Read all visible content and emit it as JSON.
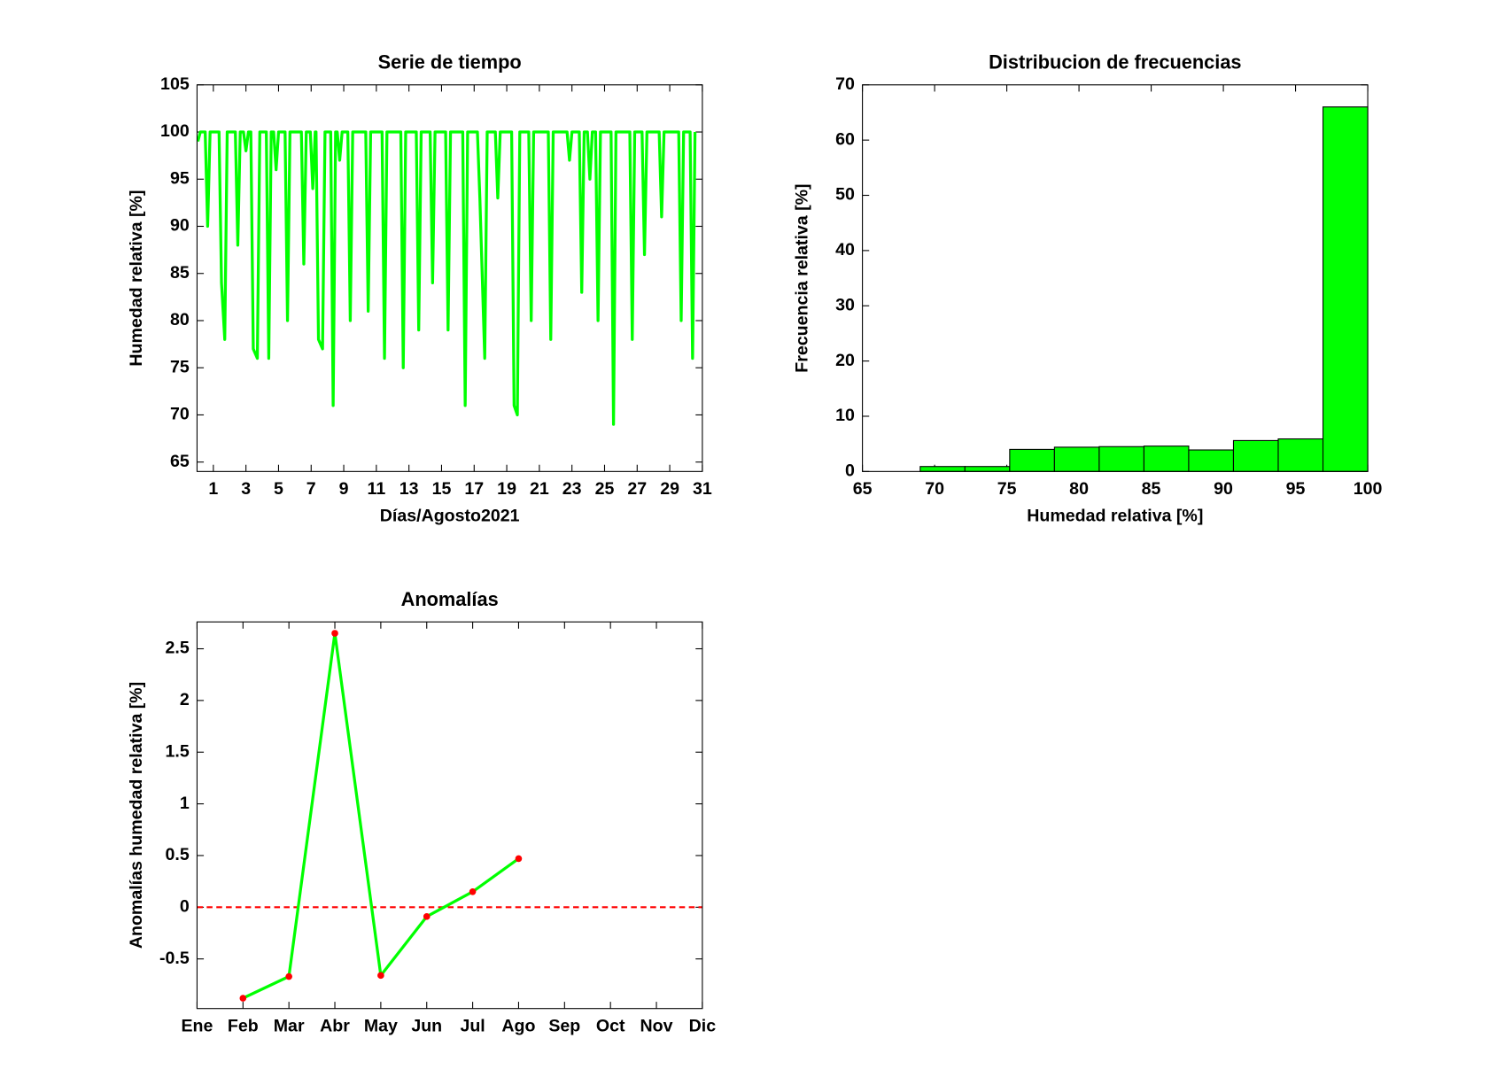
{
  "chart_data": [
    {
      "type": "line",
      "title": "Serie de tiempo",
      "xlabel": "Días/Agosto2021",
      "ylabel": "Humedad relativa [%]",
      "x": [
        0.05,
        0.2,
        0.5,
        0.65,
        0.8,
        1.35,
        1.5,
        1.7,
        1.85,
        2.35,
        2.5,
        2.65,
        2.85,
        3.0,
        3.15,
        3.3,
        3.45,
        3.7,
        3.85,
        4.25,
        4.4,
        4.55,
        4.7,
        4.85,
        5.0,
        5.4,
        5.55,
        5.7,
        6.4,
        6.55,
        6.7,
        6.95,
        7.1,
        7.25,
        7.3,
        7.45,
        7.7,
        7.85,
        8.2,
        8.35,
        8.5,
        8.6,
        8.75,
        8.9,
        9.25,
        9.4,
        9.55,
        10.35,
        10.5,
        10.65,
        11.35,
        11.5,
        11.65,
        12.5,
        12.65,
        12.8,
        13.45,
        13.6,
        13.75,
        14.3,
        14.45,
        14.6,
        15.25,
        15.4,
        15.55,
        16.3,
        16.45,
        16.6,
        17.2,
        17.35,
        17.65,
        17.8,
        18.3,
        18.45,
        18.6,
        19.3,
        19.45,
        19.65,
        19.8,
        20.35,
        20.5,
        20.65,
        21.55,
        21.7,
        21.85,
        22.7,
        22.85,
        23.0,
        23.45,
        23.6,
        23.75,
        23.95,
        24.1,
        24.25,
        24.45,
        24.6,
        24.75,
        25.4,
        25.55,
        25.7,
        26.55,
        26.7,
        26.85,
        27.3,
        27.45,
        27.6,
        28.35,
        28.5,
        28.65,
        29.55,
        29.7,
        29.85,
        30.25,
        30.4,
        30.55
      ],
      "series": [
        {
          "color": "#00ff00",
          "values": [
            99,
            100,
            100,
            90,
            100,
            100,
            84,
            78,
            100,
            100,
            88,
            100,
            100,
            98,
            100,
            100,
            77,
            76,
            100,
            100,
            76,
            100,
            100,
            96,
            100,
            100,
            80,
            100,
            100,
            86,
            100,
            100,
            94,
            100,
            100,
            78,
            77,
            100,
            100,
            71,
            100,
            100,
            97,
            100,
            100,
            80,
            100,
            100,
            81,
            100,
            100,
            76,
            100,
            100,
            75,
            100,
            100,
            79,
            100,
            100,
            84,
            100,
            100,
            79,
            100,
            100,
            71,
            100,
            100,
            93,
            76,
            100,
            100,
            93,
            100,
            100,
            71,
            70,
            100,
            100,
            80,
            100,
            100,
            78,
            100,
            100,
            97,
            100,
            100,
            83,
            100,
            100,
            95,
            100,
            100,
            80,
            100,
            100,
            69,
            100,
            100,
            78,
            100,
            100,
            87,
            100,
            100,
            91,
            100,
            100,
            80,
            100,
            100,
            76,
            100
          ]
        }
      ],
      "xlim": [
        0,
        31
      ],
      "xticks": [
        1,
        3,
        5,
        7,
        9,
        11,
        13,
        15,
        17,
        19,
        21,
        23,
        25,
        27,
        29,
        31
      ],
      "ylim": [
        64,
        105
      ],
      "yticks": [
        65,
        70,
        75,
        80,
        85,
        90,
        95,
        100,
        105
      ]
    },
    {
      "type": "histogram",
      "title": "Distribucion de frecuencias",
      "xlabel": "Humedad relativa [%]",
      "ylabel": "Frecuencia relativa [%]",
      "bins": [
        69,
        72.1,
        75.2,
        78.3,
        81.4,
        84.5,
        87.6,
        90.7,
        93.8,
        96.9,
        100
      ],
      "values": [
        0.9,
        0.9,
        4.0,
        4.4,
        4.5,
        4.6,
        3.9,
        5.6,
        5.9,
        66.0
      ],
      "color": "#00ff00",
      "xlim": [
        65,
        100
      ],
      "xticks": [
        65,
        70,
        75,
        80,
        85,
        90,
        95,
        100
      ],
      "ylim": [
        0,
        70
      ],
      "yticks": [
        0,
        10,
        20,
        30,
        40,
        50,
        60,
        70
      ]
    },
    {
      "type": "line",
      "title": "Anomalías",
      "ylabel": "Anomalías humedad relativa [%]",
      "categories": [
        "Ene",
        "Feb",
        "Mar",
        "Abr",
        "May",
        "Jun",
        "Jul",
        "Ago",
        "Sep",
        "Oct",
        "Nov",
        "Dic"
      ],
      "series": [
        {
          "color": "#00ff00",
          "marker_color": "#ff0000",
          "values": [
            null,
            -0.88,
            -0.67,
            2.65,
            -0.66,
            -0.09,
            0.15,
            0.47,
            null,
            null,
            null,
            null
          ]
        }
      ],
      "hline": {
        "value": 0,
        "color": "#ff0000"
      },
      "ylim": [
        -0.98,
        2.76
      ],
      "yticks": [
        -0.5,
        0,
        0.5,
        1,
        1.5,
        2,
        2.5
      ]
    }
  ]
}
